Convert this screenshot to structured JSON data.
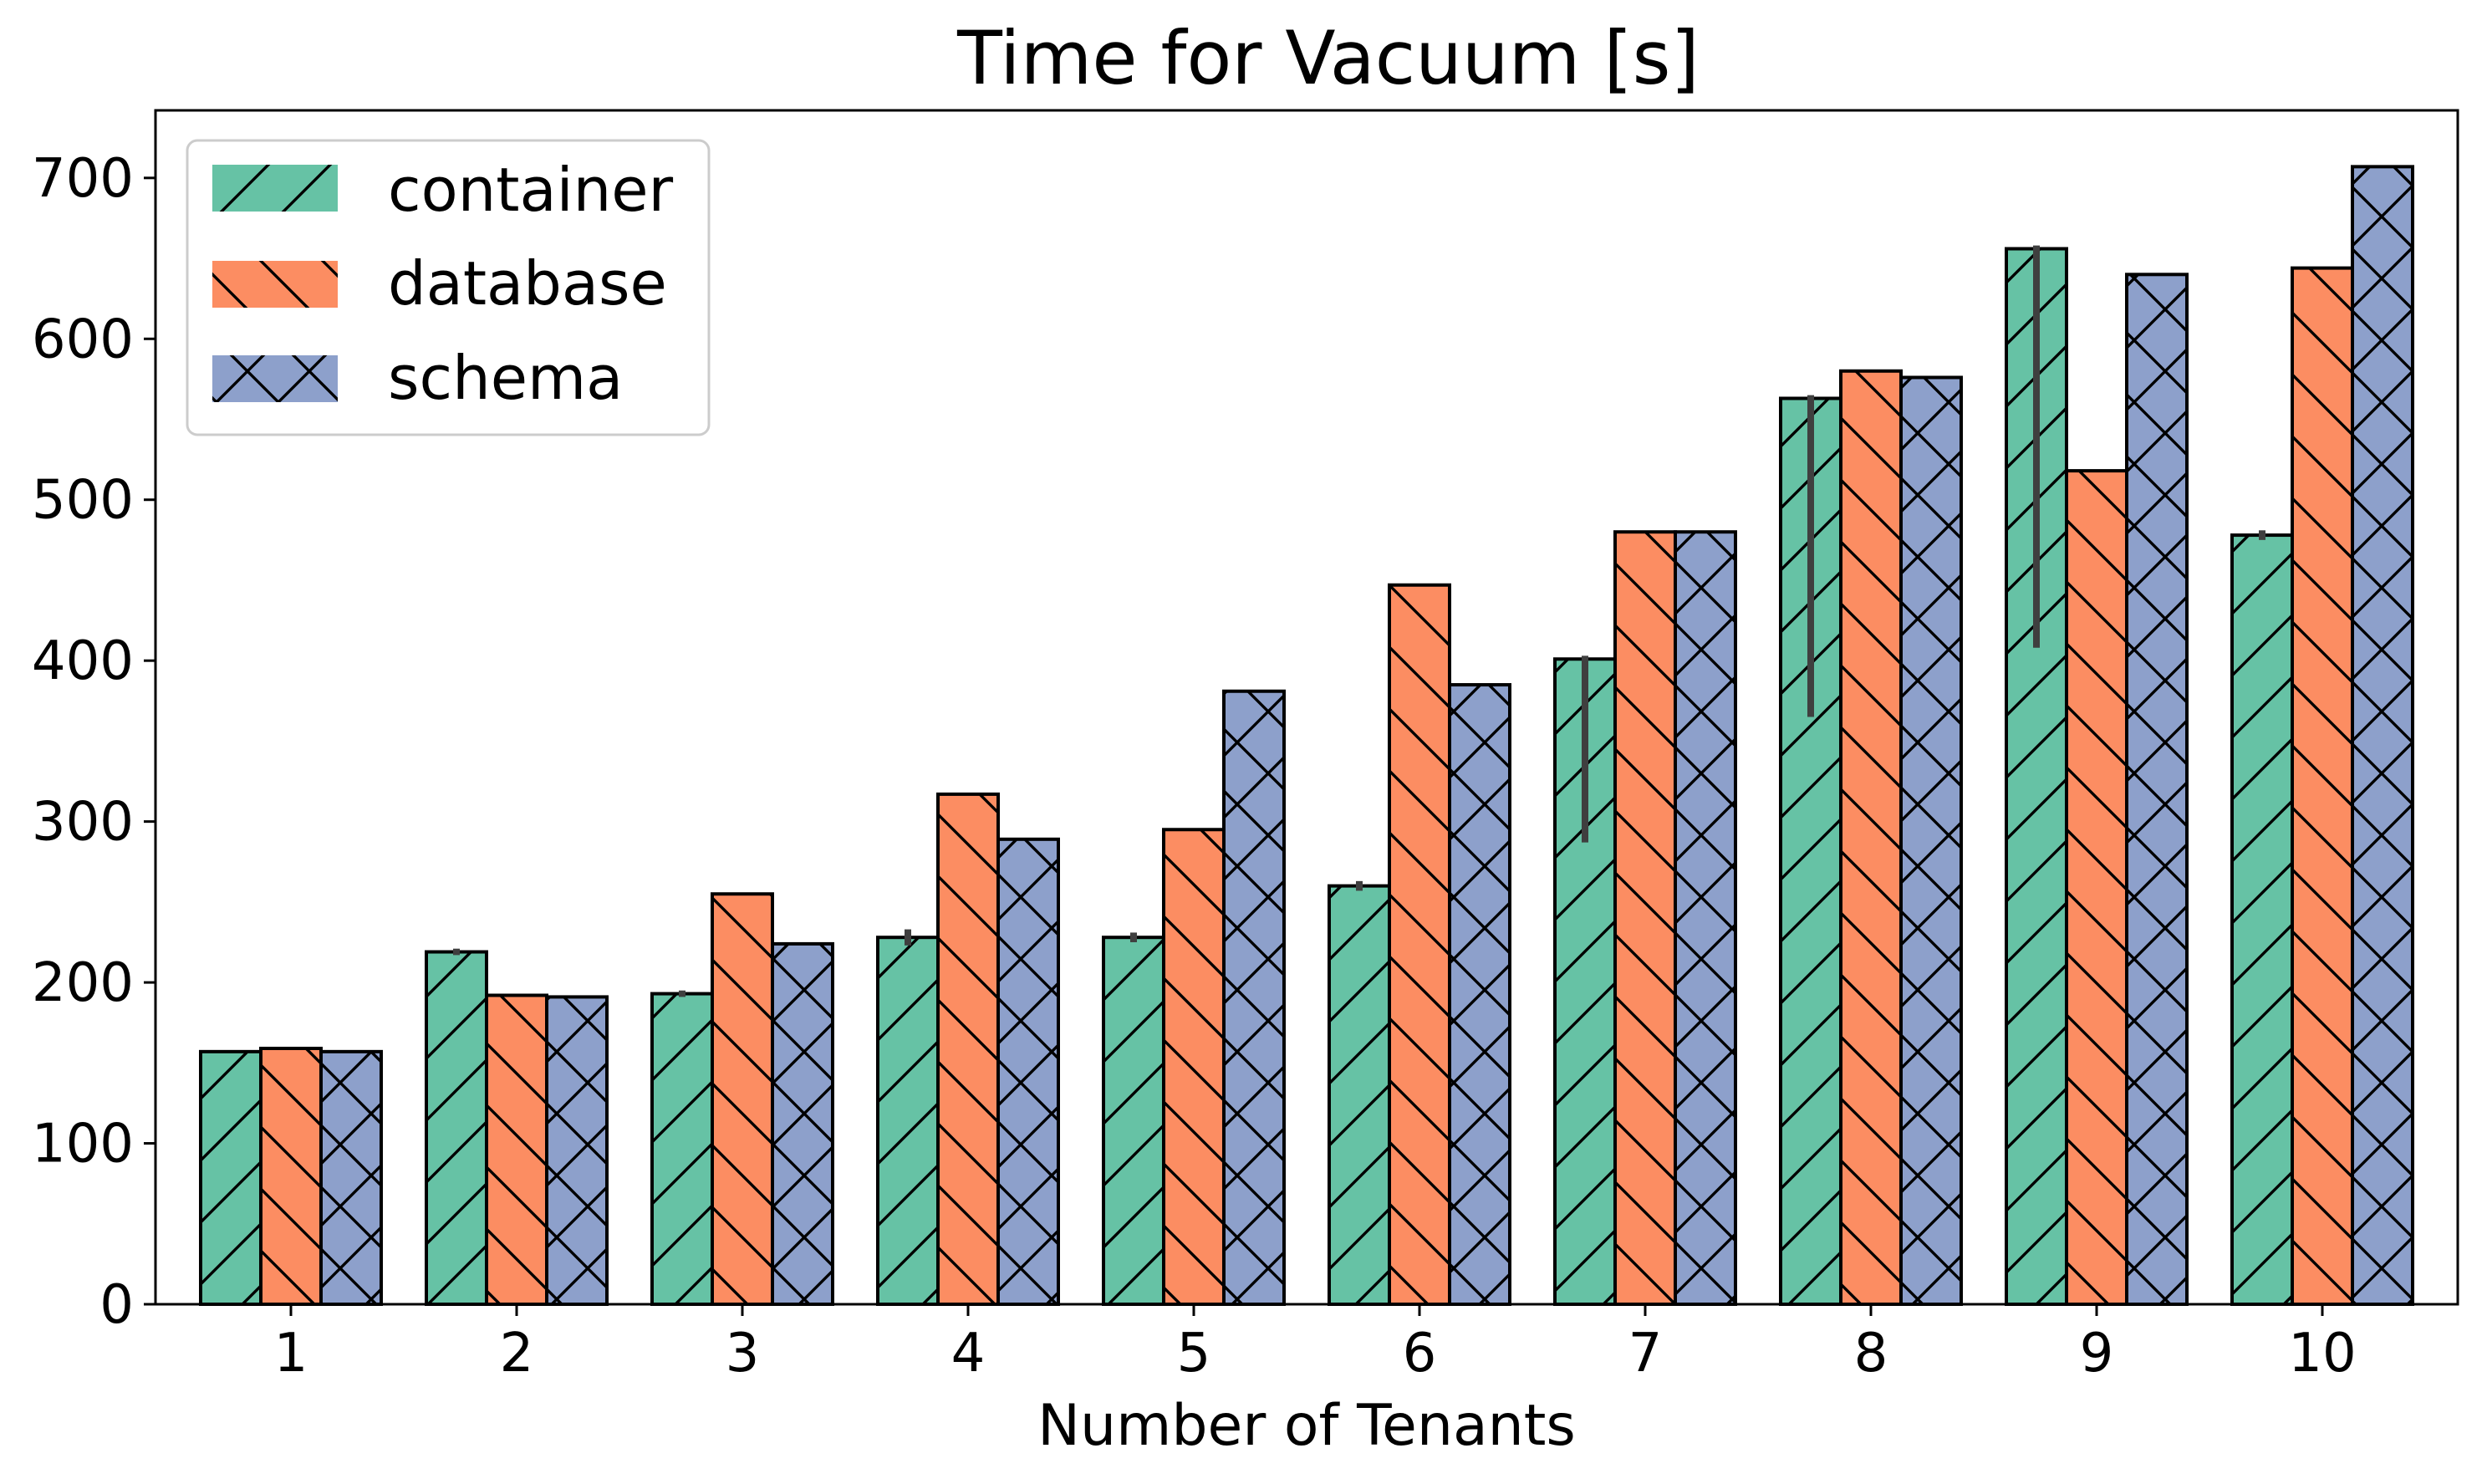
{
  "chart_data": {
    "type": "bar",
    "title": "Time for Vacuum [s]",
    "xlabel": "Number of Tenants",
    "ylabel": "",
    "categories": [
      "1",
      "2",
      "3",
      "4",
      "5",
      "6",
      "7",
      "8",
      "9",
      "10"
    ],
    "ylim": [
      0,
      742
    ],
    "yticks": [
      0,
      100,
      200,
      300,
      400,
      500,
      600,
      700
    ],
    "grid": false,
    "legend_position": "top-left",
    "series": [
      {
        "name": "container",
        "color": "#66c2a5",
        "hatch": "forward-slash",
        "values": [
          157,
          219,
          193,
          228,
          228,
          260,
          401,
          563,
          656,
          478
        ],
        "error_low": [
          157,
          217,
          191,
          223,
          225,
          257,
          287,
          365,
          408,
          475
        ],
        "error_high": [
          157,
          221,
          195,
          233,
          231,
          263,
          403,
          565,
          658,
          481
        ]
      },
      {
        "name": "database",
        "color": "#fc8d62",
        "hatch": "back-slash",
        "values": [
          159,
          192,
          255,
          317,
          295,
          447,
          480,
          580,
          518,
          644
        ]
      },
      {
        "name": "schema",
        "color": "#8da0cb",
        "hatch": "cross",
        "values": [
          157,
          191,
          224,
          289,
          381,
          385,
          480,
          576,
          640,
          707
        ]
      }
    ]
  }
}
